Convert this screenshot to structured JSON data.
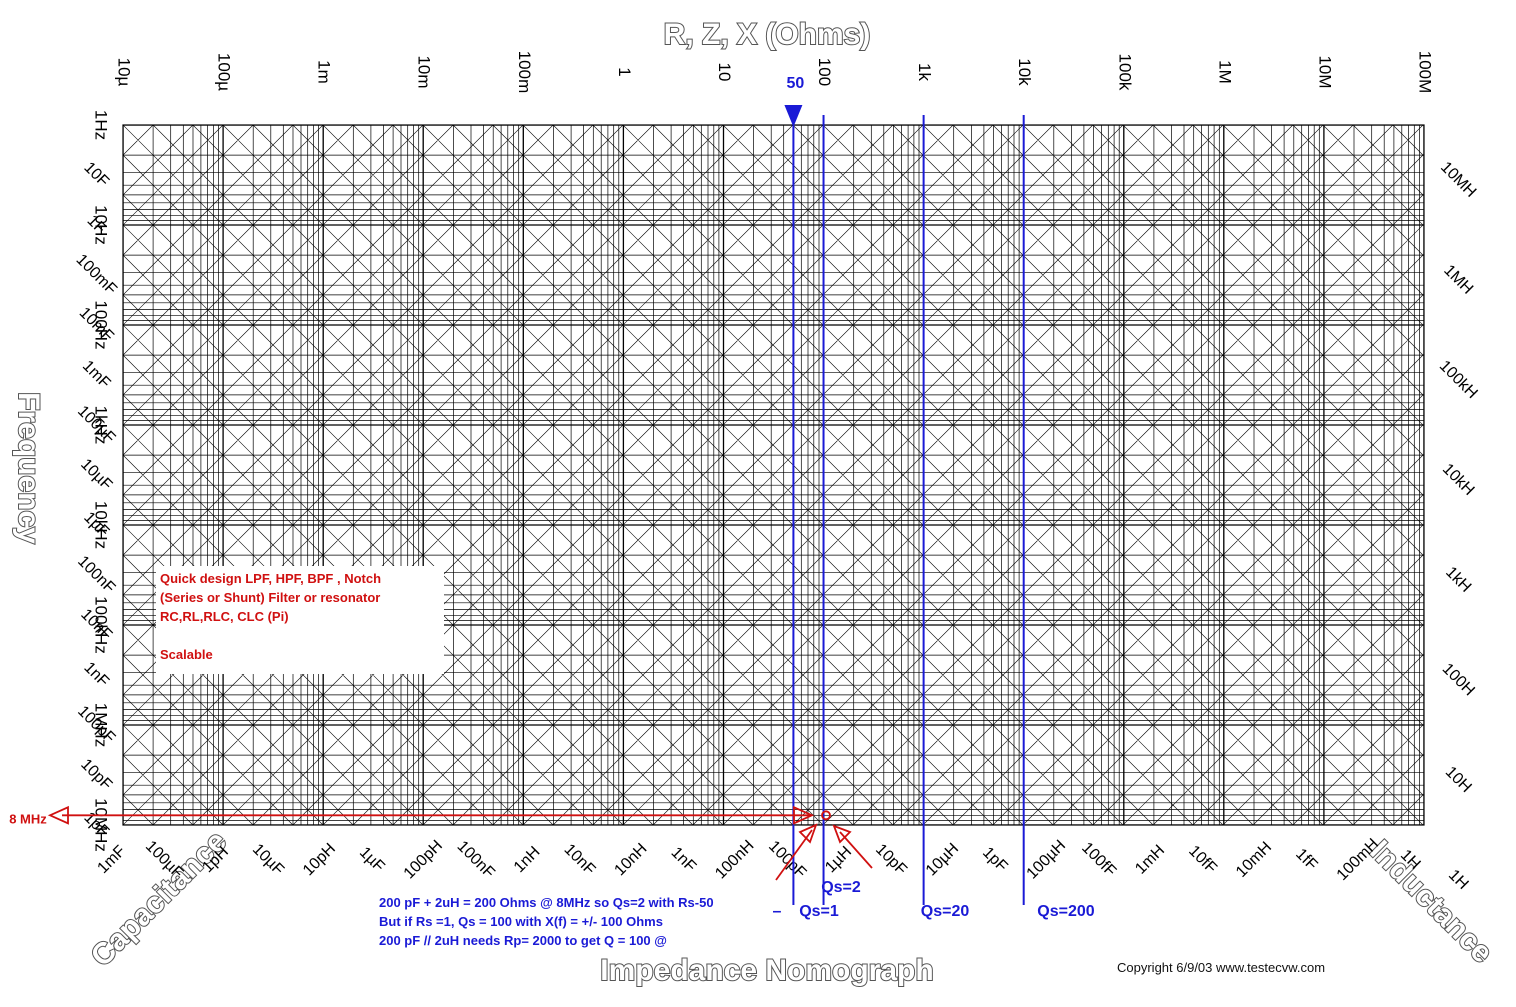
{
  "chart_data": {
    "type": "nomograph",
    "title": "Impedance Nomograph",
    "x_axis_label": "R, Z, X (Ohms)",
    "y_axis_label": "Frequency",
    "capacitance_label": "Capacitance",
    "inductance_label": "Inductance",
    "x_scale": "log",
    "y_scale": "log",
    "x_range": [
      "10µ",
      "100M"
    ],
    "y_range": [
      "1Hz",
      "10MHz"
    ],
    "top_ticks": [
      "10µ",
      "100µ",
      "1m",
      "10m",
      "100m",
      "1",
      "10",
      "100",
      "1k",
      "10k",
      "100k",
      "1M",
      "10M",
      "100M"
    ],
    "left_freq_ticks": [
      "1Hz",
      "10Hz",
      "100Hz",
      "1kHz",
      "10kHz",
      "100kHz",
      "1MHz",
      "10MHz"
    ],
    "left_cap_ticks": [
      "10F",
      "1F",
      "100mF",
      "10mF",
      "1mF",
      "100µF",
      "10µF",
      "1µF",
      "100nF",
      "10nF",
      "1nF",
      "100pF",
      "10pF",
      "1pF"
    ],
    "right_ind_ticks": [
      "10MH",
      "1MH",
      "100kH",
      "10kH",
      "1kH",
      "100H",
      "10H",
      "1H"
    ],
    "bottom_diag_ticks": [
      "1mF",
      "100µF",
      "1pH",
      "10µF",
      "10pH",
      "1µF",
      "100pH",
      "100nF",
      "1nH",
      "10nF",
      "10nH",
      "1nF",
      "100nH",
      "100pF",
      "1µH",
      "10pF",
      "10µH",
      "1pF",
      "100µH",
      "100fF",
      "1mH",
      "10fF",
      "10mH",
      "1fF",
      "100mH",
      "1H"
    ],
    "markers": {
      "r50_label": "50",
      "qs1": "Qs=1",
      "qs2": "Qs=2",
      "qs20": "Qs=20",
      "qs200": "Qs=200",
      "freq_marker": "8 MHz",
      "dash": "–"
    },
    "note_lines": [
      " Quick design LPF, HPF, BPF , Notch",
      "(Series or Shunt) Filter or resonator",
      "RC,RL,RLC, CLC (Pi)",
      "",
      "Scalable"
    ],
    "blue_notes": [
      "200 pF + 2uH = 200 Ohms @ 8MHz so Qs=2 with Rs-50",
      "But if Rs =1, Qs = 100 with X(f) = +/- 100 Ohms",
      "200 pF // 2uH needs Rp= 2000 to get Q = 100 @"
    ],
    "copyright": "Copyright 6/9/03    www.testecvw.com",
    "colors": {
      "grid": "#000000",
      "blue": "#1a1ad6",
      "red": "#d01010"
    }
  }
}
